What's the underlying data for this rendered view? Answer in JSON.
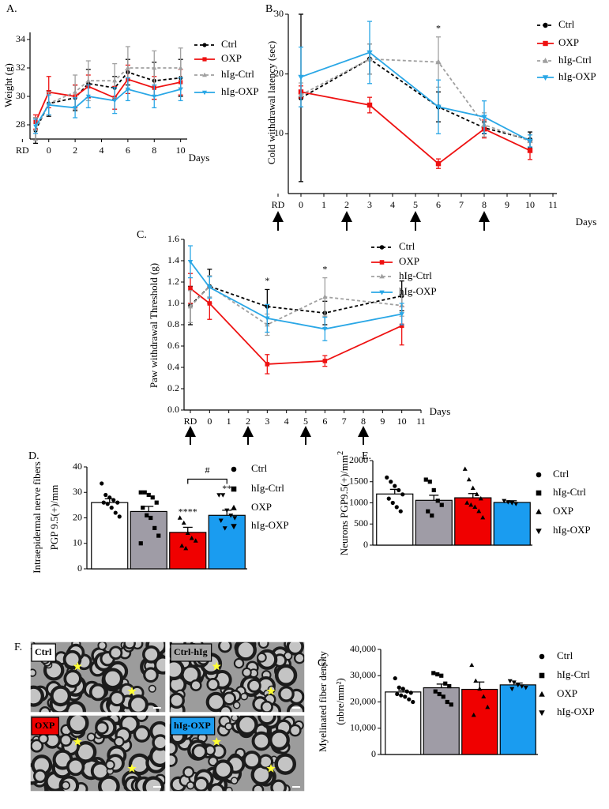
{
  "chart_data": [
    {
      "panel": "A.",
      "type": "line",
      "ylabel": "Weight (g)",
      "xlabel": "Days",
      "x": [
        -1,
        0,
        2,
        3,
        5,
        6,
        8,
        10
      ],
      "xlim": [
        -2.5,
        10.5
      ],
      "xticks": [
        {
          "value": -2,
          "label": "RD"
        },
        0,
        2,
        4,
        6,
        8,
        10
      ],
      "ylim": [
        27,
        34.5
      ],
      "yticks": [
        28,
        30,
        32,
        34
      ],
      "series": [
        {
          "name": "Ctrl",
          "color": "#000000",
          "dash": true,
          "marker": "circle",
          "values": [
            27.6,
            29.5,
            29.9,
            30.9,
            30.6,
            31.7,
            31.1,
            31.3
          ],
          "errors": [
            0.9,
            0.9,
            0.9,
            1.0,
            0.8,
            0.9,
            1.3,
            1.3
          ]
        },
        {
          "name": "OXP",
          "color": "#ee1111",
          "dash": false,
          "marker": "square",
          "values": [
            28.2,
            30.3,
            30.0,
            30.7,
            29.9,
            31.2,
            30.6,
            31.0
          ],
          "errors": [
            0.5,
            1.1,
            0.8,
            0.8,
            0.8,
            1.0,
            0.8,
            0.9
          ]
        },
        {
          "name": "hIg-Ctrl",
          "color": "#a0a0a0",
          "dash": true,
          "marker": "triangle",
          "values": [
            27.7,
            29.5,
            30.3,
            31.1,
            31.1,
            32.0,
            32.0,
            32.0
          ],
          "errors": [
            0.8,
            0.8,
            1.2,
            1.4,
            1.2,
            1.5,
            1.2,
            1.4
          ]
        },
        {
          "name": "hIg-OXP",
          "color": "#2aa7e6",
          "dash": false,
          "marker": "triangle-down",
          "values": [
            27.9,
            29.4,
            29.2,
            30.0,
            29.7,
            30.5,
            30.0,
            30.5
          ],
          "errors": [
            0.5,
            0.7,
            0.7,
            0.8,
            0.9,
            0.8,
            0.8,
            0.8
          ]
        }
      ]
    },
    {
      "panel": "B.",
      "type": "line",
      "ylabel": "Cold withdrawal latency (sec)",
      "xlabel": "Days",
      "x": [
        0,
        3,
        6,
        8,
        10
      ],
      "xlim": [
        -1,
        11
      ],
      "xticks": [
        {
          "value": -1,
          "label": "RD"
        },
        0,
        1,
        2,
        3,
        4,
        5,
        6,
        7,
        8,
        9,
        10,
        11
      ],
      "ylim": [
        0,
        30
      ],
      "yticks": [
        10,
        20,
        30
      ],
      "annotations": [
        {
          "text": "*",
          "x": 6
        }
      ],
      "series": [
        {
          "name": "Ctrl",
          "color": "#000000",
          "dash": true,
          "marker": "circle",
          "values": [
            16,
            22.5,
            14.5,
            11,
            9
          ],
          "errors": [
            14,
            2.5,
            2.5,
            1,
            1.3
          ]
        },
        {
          "name": "OXP",
          "color": "#ee1111",
          "dash": false,
          "marker": "square",
          "values": [
            17,
            14.8,
            5,
            10.8,
            7.2
          ],
          "errors": [
            1,
            1.3,
            0.8,
            1.5,
            1.5
          ]
        },
        {
          "name": "hIg-Ctrl",
          "color": "#a0a0a0",
          "dash": true,
          "marker": "triangle",
          "values": [
            16.5,
            22.5,
            22,
            11.5,
            8.8
          ],
          "errors": [
            2,
            2.5,
            4.2,
            2,
            1
          ]
        },
        {
          "name": "hIg-OXP",
          "color": "#2aa7e6",
          "dash": false,
          "marker": "triangle-down",
          "values": [
            19.5,
            23.6,
            14.5,
            12.8,
            8.8
          ],
          "errors": [
            5,
            5.2,
            4.5,
            2.7,
            1
          ]
        }
      ]
    },
    {
      "panel": "C.",
      "type": "line",
      "ylabel": "Paw withdrawal Threshold (g)",
      "xlabel": "Days",
      "x": [
        -1,
        0,
        3,
        6,
        10
      ],
      "xlim": [
        -1,
        11
      ],
      "xticks": [
        {
          "value": -1,
          "label": "RD"
        },
        0,
        1,
        2,
        3,
        4,
        5,
        6,
        7,
        8,
        9,
        10,
        11
      ],
      "ylim": [
        0,
        1.6
      ],
      "yticks": [
        {
          "value": 0,
          "label": "0.0"
        },
        0.2,
        0.4,
        0.6,
        0.8,
        {
          "value": 1,
          "label": "1.0"
        },
        1.2,
        1.4,
        1.6
      ],
      "annotations": [
        {
          "text": "*",
          "x": 3
        },
        {
          "text": "*",
          "x": 6
        }
      ],
      "series": [
        {
          "name": "Ctrl",
          "color": "#000000",
          "dash": true,
          "marker": "circle",
          "values": [
            0.98,
            1.16,
            0.97,
            0.91,
            1.07
          ],
          "errors": [
            0.18,
            0.16,
            0.16,
            0.11,
            0.14
          ]
        },
        {
          "name": "OXP",
          "color": "#ee1111",
          "dash": false,
          "marker": "square",
          "values": [
            1.14,
            1.0,
            0.43,
            0.46,
            0.79
          ],
          "errors": [
            0.14,
            0.15,
            0.09,
            0.05,
            0.18
          ]
        },
        {
          "name": "hIg-Ctrl",
          "color": "#a0a0a0",
          "dash": true,
          "marker": "triangle",
          "values": [
            0.97,
            1.16,
            0.8,
            1.06,
            0.98
          ],
          "errors": [
            0.15,
            0.1,
            0.1,
            0.18,
            0.1
          ]
        },
        {
          "name": "hIg-OXP",
          "color": "#2aa7e6",
          "dash": false,
          "marker": "triangle-down",
          "values": [
            1.39,
            1.15,
            0.86,
            0.76,
            0.9
          ],
          "errors": [
            0.15,
            0.1,
            0.13,
            0.11,
            0.1
          ]
        }
      ]
    },
    {
      "panel": "D.",
      "type": "bar",
      "ylabel": [
        "Intraepidermal nerve fibers",
        "PGP 9.5(+)/mm"
      ],
      "categories": [
        "Ctrl",
        "hIg-Ctrl",
        "OXP",
        "hIg-OXP"
      ],
      "colors": [
        "#ffffff",
        "#9f9ca6",
        "#f00000",
        "#1a9cf0"
      ],
      "markers": [
        "circle",
        "square",
        "triangle",
        "triangle-down"
      ],
      "values": [
        26,
        22.5,
        14.3,
        21
      ],
      "errors": [
        1.5,
        2,
        2,
        2
      ],
      "points": [
        [
          33.5,
          29,
          28,
          27,
          26,
          26,
          25.5,
          24,
          22,
          20.5
        ],
        [
          30,
          30,
          29,
          28,
          26,
          24,
          21,
          20,
          16,
          13,
          10
        ],
        [
          20,
          18,
          14,
          12,
          11,
          9,
          8
        ],
        [
          29,
          29,
          23,
          21,
          20,
          19,
          16
        ]
      ],
      "ylim": [
        0,
        40
      ],
      "yticks": [
        0,
        10,
        20,
        30,
        40
      ],
      "annotations": [
        {
          "text": "****",
          "category": "OXP"
        },
        {
          "text": "**",
          "category": "hIg-OXP"
        },
        {
          "text": "#",
          "categories": [
            "OXP",
            "hIg-OXP"
          ]
        }
      ]
    },
    {
      "panel": "E.",
      "type": "bar",
      "ylabel": "Neurons PGP9.5(+)/mm",
      "ylabel_sup": "2",
      "categories": [
        "Ctrl",
        "hIg-Ctrl",
        "OXP",
        "hIg-OXP"
      ],
      "colors": [
        "#ffffff",
        "#9f9ca6",
        "#f00000",
        "#1a9cf0"
      ],
      "markers": [
        "circle",
        "square",
        "triangle",
        "triangle-down"
      ],
      "values": [
        1210,
        1060,
        1120,
        1010
      ],
      "errors": [
        110,
        120,
        100,
        40
      ],
      "points": [
        [
          1600,
          1500,
          1400,
          1300,
          1200,
          1100,
          1000,
          900,
          800
        ],
        [
          1550,
          1500,
          1300,
          1050,
          950,
          800,
          700
        ],
        [
          1800,
          1550,
          1350,
          1200,
          1100,
          1000,
          950,
          900,
          800,
          650
        ],
        [
          1050,
          1020,
          1000,
          980
        ]
      ],
      "ylim": [
        0,
        2000
      ],
      "yticks": [
        0,
        500,
        1000,
        1500,
        2000
      ]
    },
    {
      "panel": "G.",
      "type": "bar",
      "ylabel": [
        "Myelinated fiber density",
        "(nbre/mm²)"
      ],
      "categories": [
        "Ctrl",
        "hIg-Ctrl",
        "OXP",
        "hIg-OXP"
      ],
      "colors": [
        "#ffffff",
        "#9f9ca6",
        "#f00000",
        "#1a9cf0"
      ],
      "markers": [
        "circle",
        "square",
        "triangle",
        "triangle-down"
      ],
      "values": [
        23800,
        25400,
        24800,
        26500
      ],
      "errors": [
        650,
        1400,
        2800,
        700
      ],
      "points": [
        [
          29000,
          25500,
          25000,
          24000,
          23500,
          23000,
          22500,
          22000,
          21000,
          20000
        ],
        [
          31000,
          30500,
          30000,
          27000,
          26000,
          24000,
          23000,
          22000,
          20000,
          19000
        ],
        [
          34000,
          28000,
          25000,
          22000,
          18000,
          15000
        ],
        [
          28000,
          27500,
          26500,
          26000,
          25500,
          25000
        ]
      ],
      "ylim": [
        0,
        40000
      ],
      "yticks": [
        0,
        {
          "value": 10000,
          "label": "10,000"
        },
        {
          "value": 20000,
          "label": "20,000"
        },
        {
          "value": 30000,
          "label": "30,000"
        },
        {
          "value": 40000,
          "label": "40,000"
        }
      ]
    }
  ],
  "micrographs": {
    "panel": "F.",
    "panels": [
      {
        "label": "Ctrl",
        "color": "#ffffff"
      },
      {
        "label": "Ctrl-hIg",
        "color": "#a6a6a6"
      },
      {
        "label": "OXP",
        "color": "#f00000"
      },
      {
        "label": "hIg-OXP",
        "color": "#1a9cf0"
      }
    ]
  }
}
